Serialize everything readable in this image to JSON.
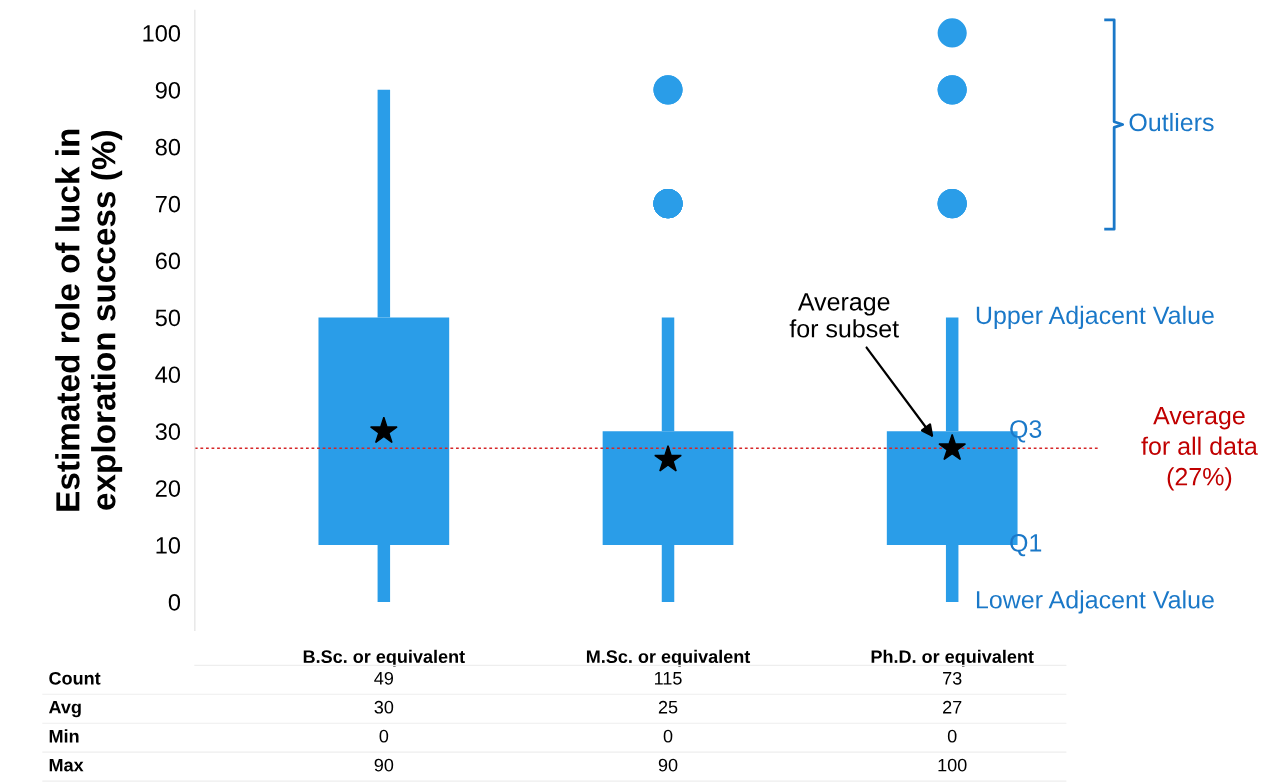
{
  "chart_data": [
    {
      "type": "box",
      "ylabel": "Estimated role of luck in\nexploration success (%)",
      "categories": [
        "B.Sc. or equivalent",
        "M.Sc. or equivalent",
        "Ph.D. or equivalent"
      ],
      "color": "#2a9de8",
      "boxes": [
        {
          "low": 0,
          "q1": 10,
          "q3": 50,
          "high": 90,
          "mean": 30
        },
        {
          "low": 0,
          "q1": 10,
          "q3": 30,
          "high": 50,
          "mean": 25,
          "outliers": [
            70,
            70,
            70,
            70,
            70,
            90,
            90
          ]
        },
        {
          "low": 0,
          "q1": 10,
          "q3": 30,
          "high": 50,
          "mean": 27,
          "outliers": [
            70,
            70,
            70,
            90,
            90,
            100
          ]
        }
      ],
      "ylim": [
        -5,
        104
      ],
      "yticks": [
        0,
        10,
        20,
        30,
        40,
        50,
        60,
        70,
        80,
        90,
        100
      ],
      "ref_lines": [
        {
          "axis": "y",
          "value": 27,
          "label": "Average\nfor all data\n(27%)",
          "color": "#d62728",
          "line_style": "dotted"
        }
      ],
      "annotations": [
        "Outliers",
        "Average\nfor subset",
        "Upper Adjacent Value",
        "Q3",
        "Q1",
        "Lower Adjacent Value"
      ],
      "grid": false,
      "legend": false
    },
    {
      "type": "other",
      "annotations": [
        "Count",
        "49",
        "115",
        "73",
        "Avg",
        "30",
        "25",
        "27",
        "Min",
        "0",
        "0",
        "0",
        "Max",
        "90",
        "90",
        "100"
      ]
    }
  ]
}
